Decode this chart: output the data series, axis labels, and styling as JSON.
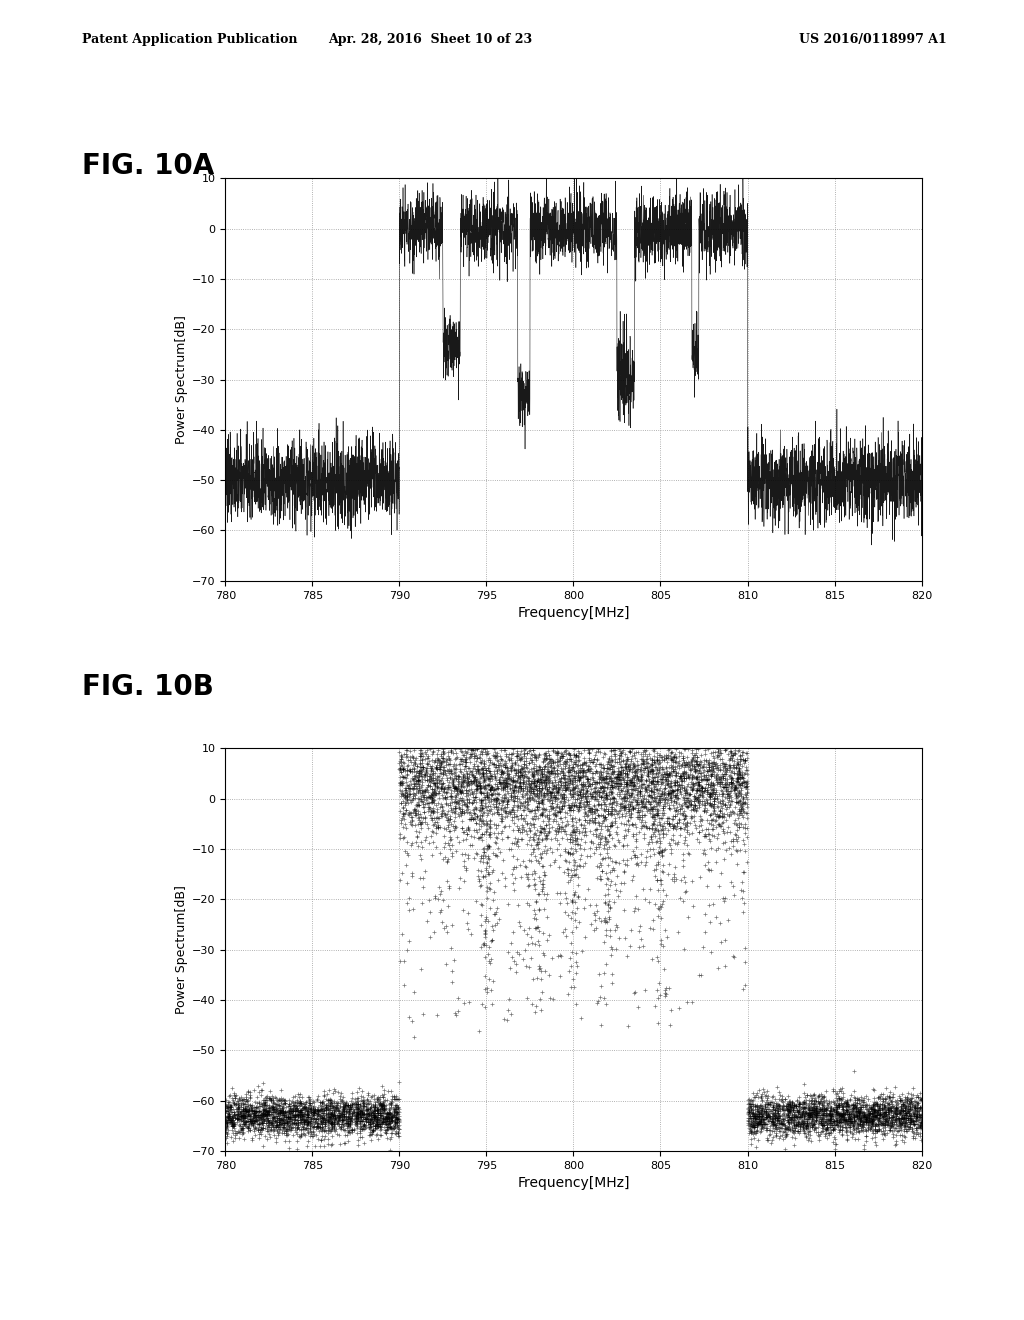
{
  "header_left": "Patent Application Publication",
  "header_center": "Apr. 28, 2016  Sheet 10 of 23",
  "header_right": "US 2016/0118997 A1",
  "fig_label_A": "FIG. 10A",
  "fig_label_B": "FIG. 10B",
  "xlabel": "Frequency[MHz]",
  "ylabel": "Power Spectrum[dB]",
  "xlim": [
    780,
    820
  ],
  "ylim": [
    -70,
    10
  ],
  "xticks": [
    780,
    785,
    790,
    795,
    800,
    805,
    810,
    815,
    820
  ],
  "yticks": [
    -70,
    -60,
    -50,
    -40,
    -30,
    -20,
    -10,
    0,
    10
  ],
  "background_color": "#ffffff",
  "line_color": "#000000",
  "grid_color": "#888888",
  "signal_band_start": 790,
  "signal_band_end": 810,
  "noise_floor_A": -50.0,
  "signal_level_A": 0.0,
  "noise_floor_B": -63.0,
  "signal_level_B": 3.0
}
